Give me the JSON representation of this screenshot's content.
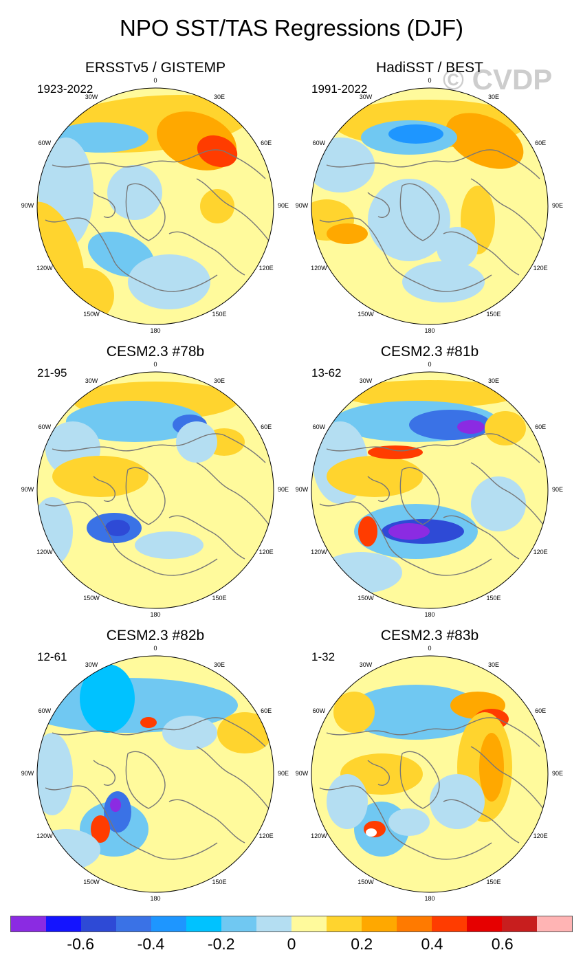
{
  "title": "NPO SST/TAS Regressions (DJF)",
  "watermark": "© CVDP",
  "lon_labels": [
    "180",
    "150E",
    "120E",
    "90E",
    "60E",
    "30E",
    "0",
    "30W",
    "60W",
    "90W",
    "120W",
    "150W"
  ],
  "panels": [
    {
      "title": "ERSSTv5 / GISTEMP",
      "period": "1923-2022"
    },
    {
      "title": "HadiSST / BEST",
      "period": "1991-2022"
    },
    {
      "title": "CESM2.3 #78b",
      "period": "21-95"
    },
    {
      "title": "CESM2.3 #81b",
      "period": "13-62"
    },
    {
      "title": "CESM2.3 #82b",
      "period": "12-61"
    },
    {
      "title": "CESM2.3 #83b",
      "period": "1-32"
    }
  ],
  "colorbar": {
    "colors": [
      "#8b2be2",
      "#1414ff",
      "#2e4ad6",
      "#3a72e6",
      "#1e96ff",
      "#00c2ff",
      "#70c8f2",
      "#b4def2",
      "#fffa9c",
      "#ffd42e",
      "#ffa800",
      "#ff7a00",
      "#ff3c00",
      "#e60000",
      "#c81e1e",
      "#ffb4b4"
    ],
    "labels": [
      "-0.6",
      "-0.4",
      "-0.2",
      "0",
      "0.2",
      "0.4",
      "0.6"
    ]
  }
}
